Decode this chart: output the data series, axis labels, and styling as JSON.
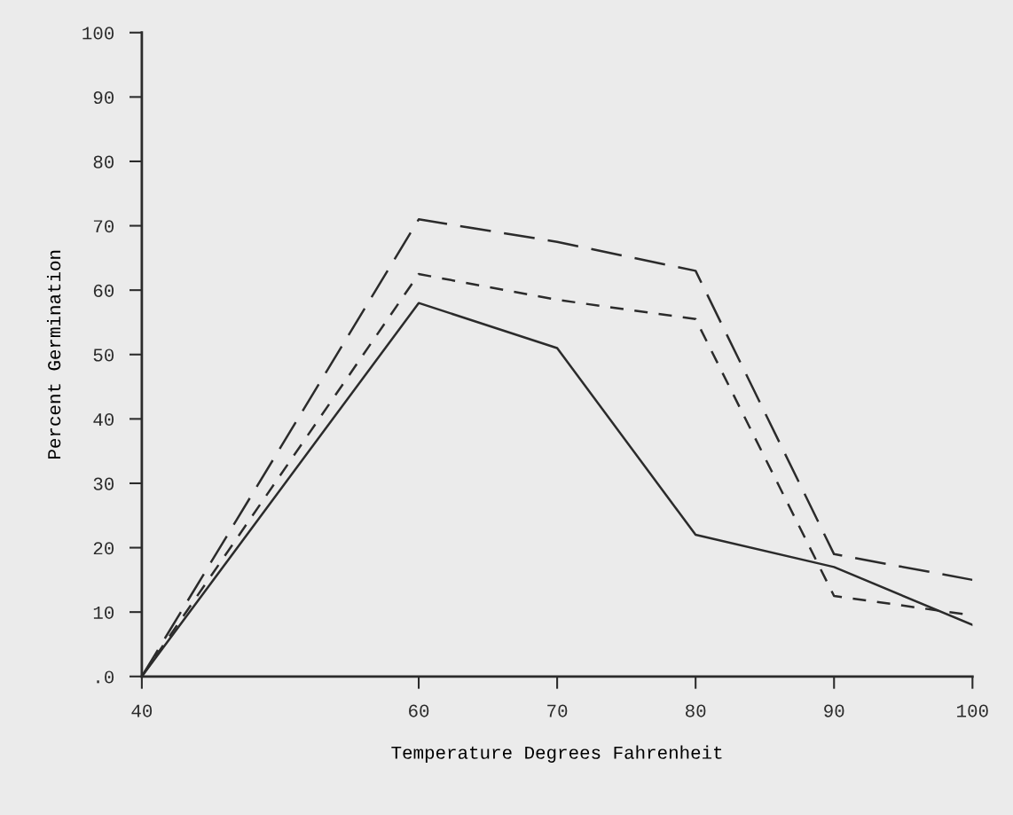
{
  "chart_data": {
    "type": "line",
    "xlabel": "Temperature Degrees Fahrenheit",
    "ylabel": "Percent Germination",
    "x": [
      40,
      60,
      70,
      80,
      90,
      100
    ],
    "series": [
      {
        "color": "#2b2b2b",
        "line_style": "solid",
        "values": [
          0,
          58,
          51,
          22,
          17,
          8
        ]
      },
      {
        "color": "#2b2b2b",
        "line_style": "dashed",
        "values": [
          0,
          71,
          67.5,
          63,
          19,
          15
        ]
      },
      {
        "color": "#2b2b2b",
        "line_style": "dashed",
        "values": [
          0,
          62.5,
          58.5,
          55.5,
          12.5,
          9.5
        ]
      }
    ],
    "xlim": [
      40,
      100
    ],
    "ylim": [
      0,
      100
    ],
    "xticks": [
      40,
      60,
      70,
      80,
      90,
      100
    ],
    "yticks": [
      {
        "value": 0,
        "label": ".0"
      },
      10,
      20,
      30,
      40,
      50,
      60,
      70,
      80,
      90,
      100
    ],
    "grid": false,
    "legend": false
  }
}
